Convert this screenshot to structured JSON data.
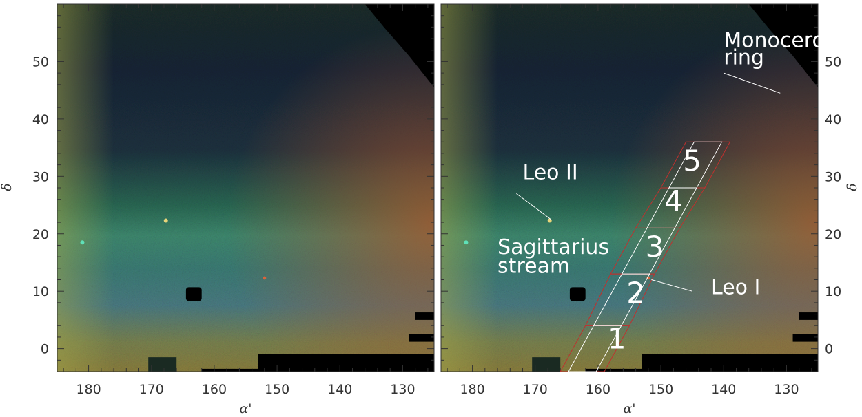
{
  "chart_data": [
    {
      "type": "heatmap",
      "panel": "left",
      "xlabel": "α'",
      "ylabel": "δ",
      "xlim": [
        185,
        125
      ],
      "ylim": [
        -4,
        60
      ],
      "xticks": [
        180,
        170,
        160,
        150,
        140,
        130
      ],
      "yticks": [
        0,
        10,
        20,
        30,
        40,
        50
      ],
      "xtick_labels": [
        "180",
        "170",
        "160",
        "150",
        "140",
        "130"
      ],
      "ytick_labels": [
        "0",
        "10",
        "20",
        "30",
        "40",
        "50"
      ],
      "colormap": "RGB composite star density",
      "annotations": []
    },
    {
      "type": "heatmap",
      "panel": "right",
      "xlabel": "α'",
      "ylabel": "δ",
      "xlim": [
        185,
        125
      ],
      "ylim": [
        -4,
        60
      ],
      "xticks": [
        180,
        170,
        160,
        150,
        140,
        130
      ],
      "yticks": [
        0,
        10,
        20,
        30,
        40,
        50
      ],
      "xtick_labels": [
        "180",
        "170",
        "160",
        "150",
        "140",
        "130"
      ],
      "ytick_labels": [
        "0",
        "10",
        "20",
        "30",
        "40",
        "50"
      ],
      "colormap": "RGB composite star density",
      "annotations": [
        {
          "text": "Monoceros",
          "x": 140,
          "y": 52.5
        },
        {
          "text": "ring",
          "x": 140,
          "y": 49.5
        },
        {
          "text": "Leo II",
          "x": 172,
          "y": 29.5
        },
        {
          "text": "Sagittarius",
          "x": 176,
          "y": 16.5
        },
        {
          "text": "stream",
          "x": 176,
          "y": 13.2
        },
        {
          "text": "Leo I",
          "x": 142,
          "y": 9.5
        },
        {
          "text": "5",
          "x": 145,
          "y": 31
        },
        {
          "text": "4",
          "x": 148,
          "y": 24
        },
        {
          "text": "3",
          "x": 151,
          "y": 16
        },
        {
          "text": "2",
          "x": 154,
          "y": 8
        },
        {
          "text": "1",
          "x": 157,
          "y": 0
        }
      ],
      "pointer_lines": [
        {
          "from": [
            140,
            48
          ],
          "to": [
            131,
            44.5
          ]
        },
        {
          "from": [
            173,
            27
          ],
          "to": [
            167.5,
            22.5
          ]
        },
        {
          "from": [
            145,
            10
          ],
          "to": [
            151.5,
            12
          ]
        }
      ],
      "fields": [
        {
          "label": "1",
          "corners": [
            [
              166,
              -4
            ],
            [
              159,
              -4
            ],
            [
              155,
              4
            ],
            [
              162,
              4
            ]
          ]
        },
        {
          "label": "2",
          "corners": [
            [
              162,
              4
            ],
            [
              155,
              4
            ],
            [
              151,
              13
            ],
            [
              158,
              13
            ]
          ]
        },
        {
          "label": "3",
          "corners": [
            [
              158,
              13
            ],
            [
              151,
              13
            ],
            [
              147,
              21
            ],
            [
              154,
              21
            ]
          ]
        },
        {
          "label": "4",
          "corners": [
            [
              154,
              21
            ],
            [
              147,
              21
            ],
            [
              143,
              28
            ],
            [
              150,
              28
            ]
          ]
        },
        {
          "label": "5",
          "corners": [
            [
              150,
              28
            ],
            [
              143,
              28
            ],
            [
              139,
              36
            ],
            [
              146,
              36
            ]
          ]
        }
      ],
      "strip_centerline": [
        [
          162.5,
          -4
        ],
        [
          142.5,
          36
        ]
      ]
    }
  ]
}
